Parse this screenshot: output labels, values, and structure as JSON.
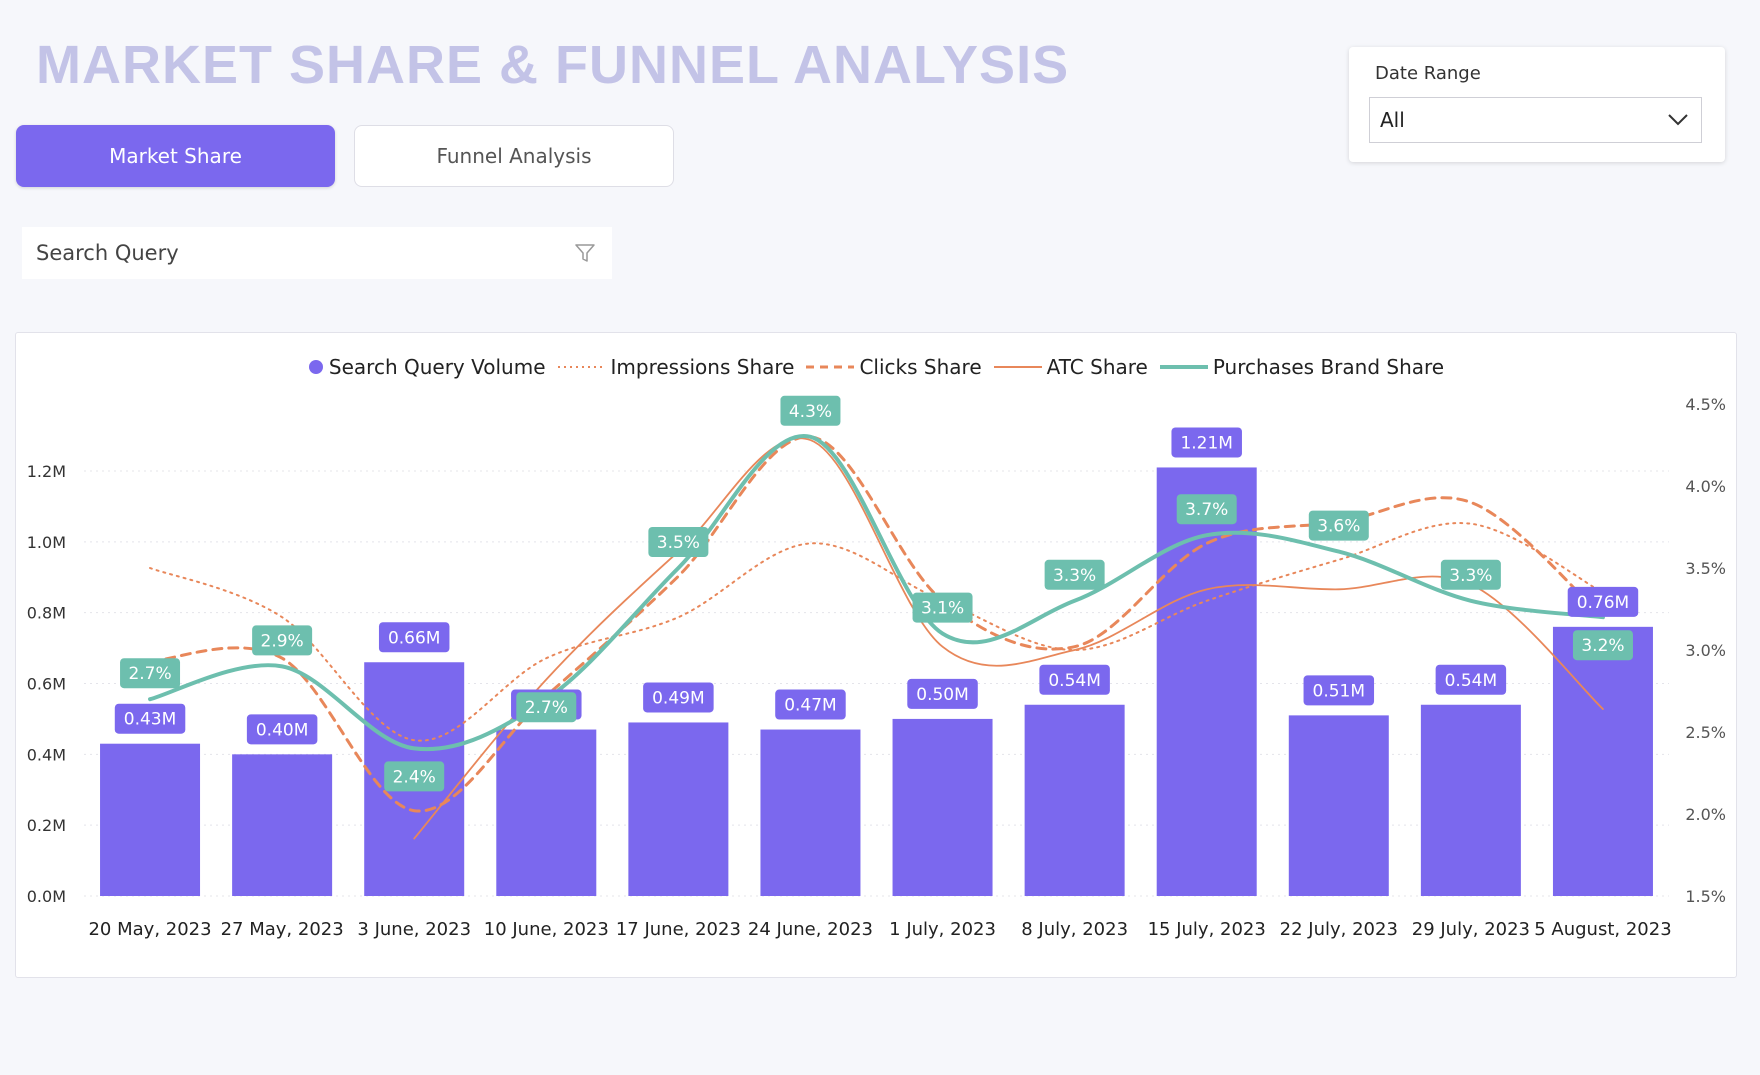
{
  "header": {
    "title": "MARKET SHARE & FUNNEL ANALYSIS"
  },
  "tabs": [
    {
      "label": "Market Share",
      "active": true
    },
    {
      "label": "Funnel Analysis",
      "active": false
    }
  ],
  "date_range": {
    "label": "Date Range",
    "value": "All",
    "icon": "chevron-down-icon"
  },
  "search": {
    "placeholder": "Search Query",
    "icon": "filter-icon"
  },
  "colors": {
    "bar": "#7b68ee",
    "impressions": "#e8875a",
    "clicks": "#e8875a",
    "atc": "#e8875a",
    "purchases": "#6dbfae",
    "accent": "#7b68ee"
  },
  "chart_data": {
    "type": "bar",
    "categories": [
      "20 May, 2023",
      "27 May, 2023",
      "3 June, 2023",
      "10 June, 2023",
      "17 June, 2023",
      "24 June, 2023",
      "1 July, 2023",
      "8 July, 2023",
      "15 July, 2023",
      "22 July, 2023",
      "29 July, 2023",
      "5 August, 2023"
    ],
    "legend": [
      "Search Query Volume",
      "Impressions Share",
      "Clicks Share",
      "ATC Share",
      "Purchases Brand Share"
    ],
    "y_left": {
      "ticks": [
        "0.0M",
        "0.2M",
        "0.4M",
        "0.6M",
        "0.8M",
        "1.0M",
        "1.2M"
      ],
      "range": [
        0,
        1.2
      ]
    },
    "y_right": {
      "ticks": [
        "1.5%",
        "2.0%",
        "2.5%",
        "3.0%",
        "3.5%",
        "4.0%",
        "4.5%"
      ],
      "range": [
        1.5,
        4.5
      ]
    },
    "series": [
      {
        "name": "Search Query Volume",
        "type": "bar",
        "values": [
          0.43,
          0.4,
          0.66,
          0.47,
          0.49,
          0.47,
          0.5,
          0.54,
          1.21,
          0.51,
          0.54,
          0.76
        ],
        "labels": [
          "0.43M",
          "0.40M",
          "0.66M",
          "0.47M",
          "0.49M",
          "0.47M",
          "0.50M",
          "0.54M",
          "1.21M",
          "0.51M",
          "0.54M",
          "0.76M"
        ]
      },
      {
        "name": "Impressions Share",
        "type": "line",
        "style": "dotted",
        "values": [
          3.5,
          3.2,
          2.45,
          2.95,
          3.2,
          3.65,
          3.3,
          3.0,
          3.3,
          3.55,
          3.77,
          3.35
        ]
      },
      {
        "name": "Clicks Share",
        "type": "line",
        "style": "dashed",
        "values": [
          2.93,
          2.95,
          2.02,
          2.72,
          3.45,
          4.3,
          3.3,
          3.02,
          3.65,
          3.78,
          3.9,
          3.2
        ]
      },
      {
        "name": "ATC Share",
        "type": "line",
        "style": "solid-thin",
        "values": [
          null,
          null,
          1.85,
          2.82,
          3.6,
          4.28,
          3.02,
          3.0,
          3.37,
          3.37,
          3.4,
          2.64
        ]
      },
      {
        "name": "Purchases Brand Share",
        "type": "line",
        "style": "solid-thick",
        "values": [
          2.7,
          2.9,
          2.4,
          2.7,
          3.5,
          4.3,
          3.1,
          3.3,
          3.7,
          3.6,
          3.3,
          3.2
        ],
        "labels": [
          "2.7%",
          "2.9%",
          "2.4%",
          "2.7%",
          "3.5%",
          "4.3%",
          "3.1%",
          "3.3%",
          "3.7%",
          "3.6%",
          "3.3%",
          "3.2%"
        ]
      }
    ]
  }
}
